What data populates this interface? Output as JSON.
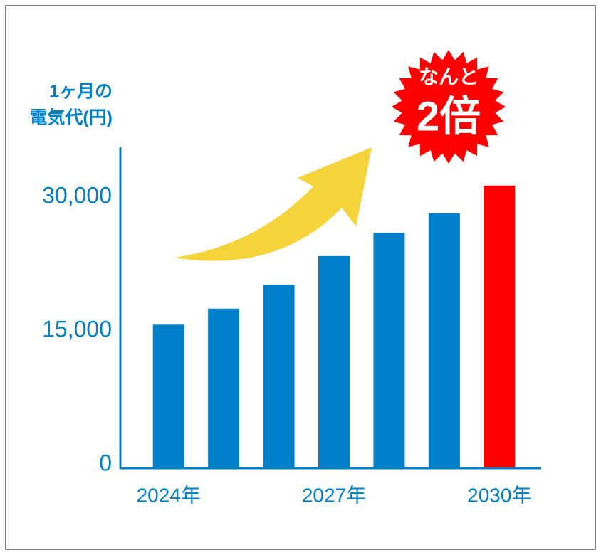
{
  "chart_data": {
    "type": "bar",
    "y_label": [
      "1ヶ月の",
      "電気代(円)"
    ],
    "annotation": [
      "なんと",
      "2倍"
    ],
    "categories": [
      "2024年",
      null,
      null,
      "2027年",
      null,
      null,
      "2030年"
    ],
    "values": [
      16100,
      17900,
      20600,
      23800,
      26400,
      28600,
      31700
    ],
    "colors": [
      "#0080c8",
      "#0080c8",
      "#0080c8",
      "#0080c8",
      "#0080c8",
      "#0080c8",
      "#ff0000"
    ],
    "ylim": [
      0,
      36000
    ],
    "yticks": [
      0,
      {
        "value": 15000,
        "label": "15,000"
      },
      {
        "value": 30000,
        "label": "30,000"
      }
    ],
    "grid": false
  }
}
